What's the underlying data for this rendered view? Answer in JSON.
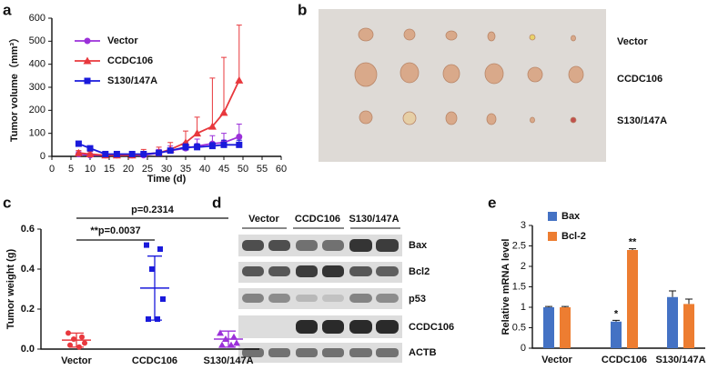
{
  "panels": [
    "a",
    "b",
    "c",
    "d",
    "e"
  ],
  "chart_data": [
    {
      "type": "line",
      "xlabel": "Time (d)",
      "ylabel": "Tumor volume（mm³）",
      "x": [
        7,
        10,
        14,
        17,
        21,
        24,
        28,
        31,
        35,
        38,
        42,
        45,
        49
      ],
      "xlim": [
        0,
        60
      ],
      "xticks": [
        0,
        5,
        10,
        15,
        20,
        25,
        30,
        35,
        40,
        45,
        50,
        55,
        60
      ],
      "ylim": [
        0,
        600
      ],
      "yticks": [
        0,
        100,
        200,
        300,
        400,
        500,
        600
      ],
      "legend": "upper left",
      "series": [
        {
          "name": "Vector",
          "color": "#9b30d9",
          "marker": "circle",
          "values": [
            10,
            5,
            5,
            5,
            5,
            5,
            15,
            25,
            35,
            45,
            55,
            60,
            85
          ],
          "errors": [
            10,
            8,
            8,
            8,
            8,
            8,
            15,
            20,
            25,
            30,
            35,
            40,
            55
          ]
        },
        {
          "name": "CCDC106",
          "color": "#e8383d",
          "marker": "triangle",
          "values": [
            15,
            10,
            5,
            5,
            5,
            10,
            15,
            30,
            60,
            100,
            130,
            190,
            330
          ],
          "errors": [
            10,
            10,
            10,
            10,
            10,
            20,
            25,
            30,
            50,
            70,
            210,
            240,
            240
          ]
        },
        {
          "name": "S130/147A",
          "color": "#1a1adb",
          "marker": "square",
          "values": [
            55,
            35,
            10,
            10,
            10,
            10,
            15,
            25,
            40,
            40,
            45,
            50,
            50
          ],
          "errors": [
            10,
            10,
            10,
            10,
            10,
            10,
            10,
            10,
            15,
            15,
            15,
            20,
            20
          ]
        }
      ]
    },
    {
      "type": "dotplot",
      "ylabel": "Tumor weight (g)",
      "categories": [
        "Vector",
        "CCDC106",
        "S130/147A"
      ],
      "colors": [
        "#e8383d",
        "#1a1adb",
        "#9b30d9"
      ],
      "points": [
        [
          0.08,
          0.06,
          0.05,
          0.03,
          0.02,
          0.01
        ],
        [
          0.52,
          0.5,
          0.4,
          0.25,
          0.15,
          0.15
        ],
        [
          0.08,
          0.06,
          0.05,
          0.03,
          0.02,
          0.02
        ]
      ],
      "means": [
        0.045,
        0.305,
        0.05
      ],
      "sds": [
        0.035,
        0.16,
        0.04
      ],
      "ylim": [
        0,
        0.6
      ],
      "yticks": [
        {
          "value": 0,
          "label": "0.0"
        },
        {
          "value": 0.2,
          "label": "0.2"
        },
        {
          "value": 0.4,
          "label": "0.4"
        },
        {
          "value": 0.6,
          "label": "0.6"
        }
      ],
      "annotations": [
        "p=0.2314",
        "**p=0.0037"
      ]
    },
    {
      "type": "bar",
      "ylabel": "Relative mRNA level",
      "categories": [
        "Vector",
        "CCDC106",
        "S130/147A"
      ],
      "ylim": [
        0,
        3
      ],
      "yticks": [
        0,
        0.5,
        1,
        1.5,
        2,
        2.5,
        3
      ],
      "legend": "upper left",
      "series": [
        {
          "name": "Bax",
          "color": "#4472c4",
          "values": [
            1,
            0.65,
            1.25
          ],
          "errors": [
            0.02,
            0.03,
            0.15
          ]
        },
        {
          "name": "Bcl-2",
          "color": "#ed7d31",
          "values": [
            1,
            2.4,
            1.08
          ],
          "errors": [
            0.02,
            0.03,
            0.12
          ]
        }
      ],
      "annotations": [
        "*",
        "**"
      ]
    }
  ],
  "photo": {
    "rows": [
      "Vector",
      "CCDC106",
      "S130/147A"
    ]
  },
  "blot": {
    "groups": [
      "Vector",
      "CCDC106",
      "S130/147A"
    ],
    "bands": [
      "Bax",
      "Bcl2",
      "p53",
      "CCDC106",
      "ACTB"
    ]
  }
}
